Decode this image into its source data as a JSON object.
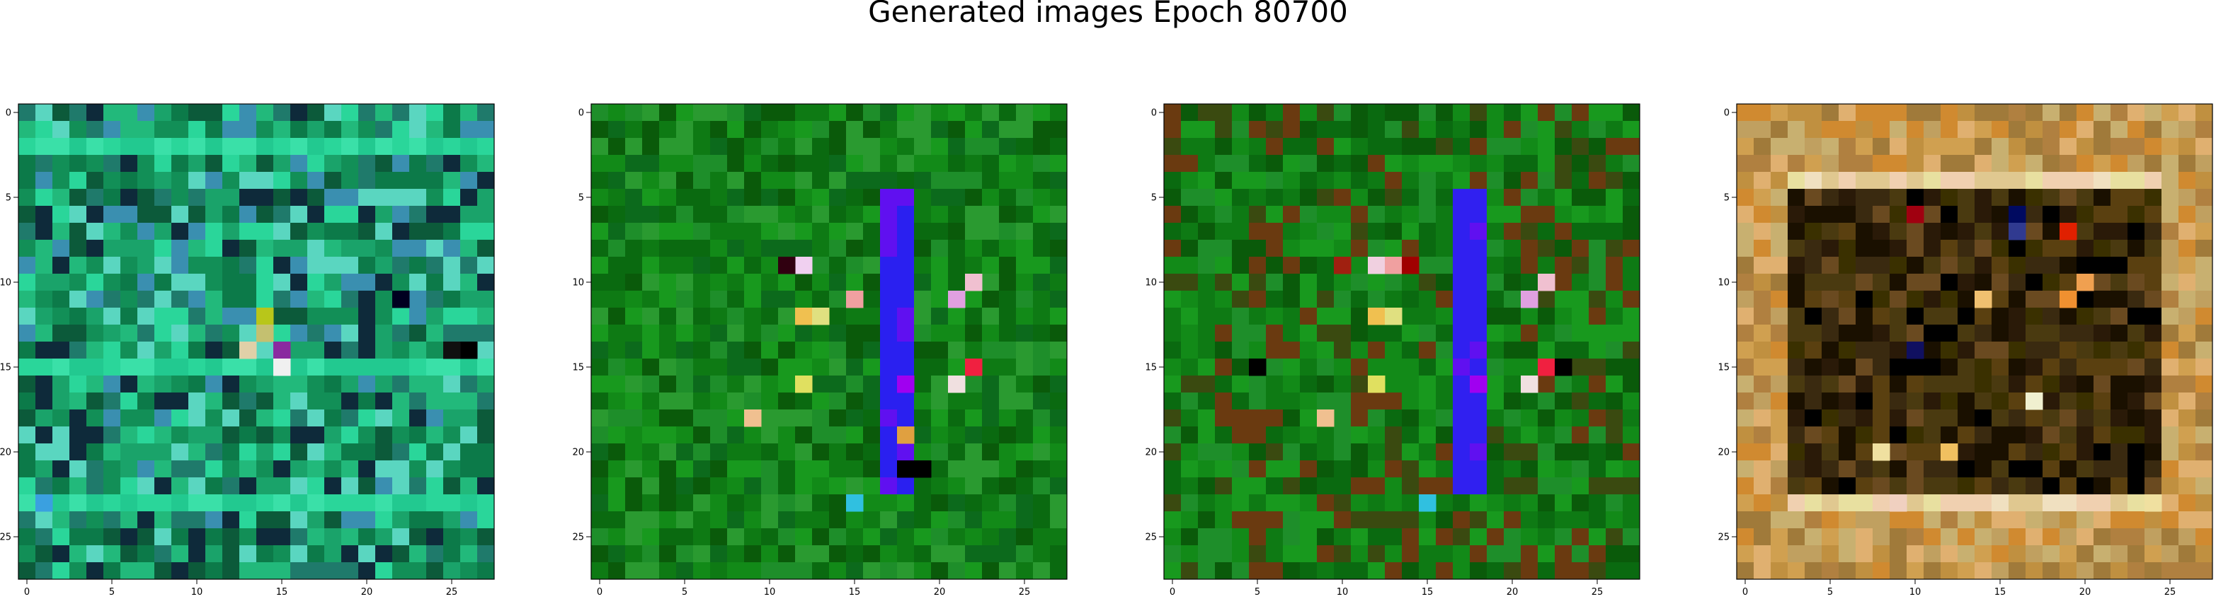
{
  "title": "Generated images Epoch 80700",
  "chart_data": [
    {
      "type": "heatmap",
      "title": "",
      "xlabel": "",
      "ylabel": "",
      "xlim": [
        -0.5,
        27.5
      ],
      "ylim": [
        27.5,
        -0.5
      ],
      "xticks": [
        0,
        5,
        10,
        15,
        20,
        25
      ],
      "yticks": [
        0,
        5,
        10,
        15,
        20,
        25
      ],
      "grid": false,
      "palette": [
        "#0c7a49",
        "#128f57",
        "#1aa36a",
        "#22b97b",
        "#2ad69a",
        "#0c5a3a",
        "#1f7a6b",
        "#3a8fb0",
        "#0e2a3a",
        "#5ad6c0"
      ],
      "bright_rows": [
        2,
        15,
        23
      ],
      "highlights": [
        {
          "x": 14,
          "y": 12,
          "color": "#b8c61a"
        },
        {
          "x": 14,
          "y": 13,
          "color": "#c4c070"
        },
        {
          "x": 15,
          "y": 14,
          "color": "#8a2aa0"
        },
        {
          "x": 15,
          "y": 15,
          "color": "#f0f0f0"
        },
        {
          "x": 13,
          "y": 14,
          "color": "#e0d0a8"
        },
        {
          "x": 26,
          "y": 14,
          "color": "#000000"
        },
        {
          "x": 25,
          "y": 14,
          "color": "#101010"
        },
        {
          "x": 1,
          "y": 23,
          "color": "#3aa0e0"
        },
        {
          "x": 22,
          "y": 11,
          "color": "#000020"
        }
      ]
    },
    {
      "type": "heatmap",
      "title": "",
      "xlabel": "",
      "ylabel": "",
      "xlim": [
        -0.5,
        27.5
      ],
      "ylim": [
        27.5,
        -0.5
      ],
      "xticks": [
        0,
        5,
        10,
        15,
        20,
        25
      ],
      "yticks": [
        0,
        5,
        10,
        15,
        20,
        25
      ],
      "grid": false,
      "palette": [
        "#0a6a10",
        "#0e7a14",
        "#128a18",
        "#18991e",
        "#0a5a0a",
        "#1e8e2a",
        "#2a9a30",
        "#0c6a1c"
      ],
      "bar": {
        "x0": 17,
        "x1": 18,
        "y0": 5,
        "y1": 22,
        "color": "#2a20f0"
      },
      "highlights": [
        {
          "x": 12,
          "y": 9,
          "color": "#f0d0f0"
        },
        {
          "x": 12,
          "y": 12,
          "color": "#f0c050"
        },
        {
          "x": 13,
          "y": 12,
          "color": "#e0e080"
        },
        {
          "x": 15,
          "y": 11,
          "color": "#f0a0a0"
        },
        {
          "x": 21,
          "y": 11,
          "color": "#e0a0e0"
        },
        {
          "x": 22,
          "y": 10,
          "color": "#f0c0d0"
        },
        {
          "x": 21,
          "y": 16,
          "color": "#f0e0e0"
        },
        {
          "x": 22,
          "y": 15,
          "color": "#f02040"
        },
        {
          "x": 9,
          "y": 18,
          "color": "#f0c090"
        },
        {
          "x": 12,
          "y": 16,
          "color": "#e0e060"
        },
        {
          "x": 15,
          "y": 23,
          "color": "#30c0e0"
        },
        {
          "x": 18,
          "y": 21,
          "color": "#000000"
        },
        {
          "x": 19,
          "y": 21,
          "color": "#000000"
        },
        {
          "x": 11,
          "y": 9,
          "color": "#300010"
        },
        {
          "x": 18,
          "y": 16,
          "color": "#a000f0"
        },
        {
          "x": 18,
          "y": 19,
          "color": "#e0a040"
        }
      ]
    },
    {
      "type": "heatmap",
      "title": "",
      "xlabel": "",
      "ylabel": "",
      "xlim": [
        -0.5,
        27.5
      ],
      "ylim": [
        27.5,
        -0.5
      ],
      "xticks": [
        0,
        5,
        10,
        15,
        20,
        25
      ],
      "yticks": [
        0,
        5,
        10,
        15,
        20,
        25
      ],
      "grid": false,
      "palette": [
        "#0a6a10",
        "#0e7a14",
        "#128a18",
        "#18991e",
        "#0a5a0a",
        "#1e8e2a",
        "#6a3a10",
        "#3a4a10"
      ],
      "bar": {
        "x0": 17,
        "x1": 18,
        "y0": 5,
        "y1": 22,
        "color": "#3020f0"
      },
      "highlights": [
        {
          "x": 12,
          "y": 9,
          "color": "#f0d0e0"
        },
        {
          "x": 13,
          "y": 9,
          "color": "#f0a0a0"
        },
        {
          "x": 12,
          "y": 12,
          "color": "#f0c050"
        },
        {
          "x": 13,
          "y": 12,
          "color": "#e0e080"
        },
        {
          "x": 21,
          "y": 11,
          "color": "#e0a0e0"
        },
        {
          "x": 22,
          "y": 10,
          "color": "#f0c0d0"
        },
        {
          "x": 21,
          "y": 16,
          "color": "#f0e0e0"
        },
        {
          "x": 22,
          "y": 15,
          "color": "#f02040"
        },
        {
          "x": 9,
          "y": 18,
          "color": "#f0c090"
        },
        {
          "x": 12,
          "y": 16,
          "color": "#e0e060"
        },
        {
          "x": 15,
          "y": 23,
          "color": "#30c0e0"
        },
        {
          "x": 10,
          "y": 9,
          "color": "#a02010"
        },
        {
          "x": 14,
          "y": 9,
          "color": "#a00000"
        },
        {
          "x": 18,
          "y": 16,
          "color": "#a000f0"
        },
        {
          "x": 5,
          "y": 15,
          "color": "#000000"
        },
        {
          "x": 23,
          "y": 15,
          "color": "#000000"
        }
      ]
    },
    {
      "type": "heatmap",
      "title": "",
      "xlabel": "",
      "ylabel": "",
      "xlim": [
        -0.5,
        27.5
      ],
      "ylim": [
        27.5,
        -0.5
      ],
      "xticks": [
        0,
        5,
        10,
        15,
        20,
        25
      ],
      "yticks": [
        0,
        5,
        10,
        15,
        20,
        25
      ],
      "grid": false,
      "frame_palette": [
        "#c09040",
        "#d0a050",
        "#b08040",
        "#c8b070",
        "#e0b070",
        "#a07a3a",
        "#d08a30",
        "#c0a060"
      ],
      "inner_palette": [
        "#2a1a08",
        "#3a2a10",
        "#4a3a10",
        "#1a1000",
        "#5a4010",
        "#3a3000",
        "#000000",
        "#6a4a20"
      ],
      "light_rows": [
        4,
        23
      ],
      "highlights": [
        {
          "x": 10,
          "y": 6,
          "color": "#a00010"
        },
        {
          "x": 16,
          "y": 6,
          "color": "#000a60"
        },
        {
          "x": 19,
          "y": 7,
          "color": "#e02000"
        },
        {
          "x": 20,
          "y": 10,
          "color": "#f0a050"
        },
        {
          "x": 19,
          "y": 11,
          "color": "#f09030"
        },
        {
          "x": 14,
          "y": 11,
          "color": "#f0c070"
        },
        {
          "x": 10,
          "y": 14,
          "color": "#101060"
        },
        {
          "x": 17,
          "y": 17,
          "color": "#f0f0d0"
        },
        {
          "x": 16,
          "y": 7,
          "color": "#303a90"
        },
        {
          "x": 8,
          "y": 20,
          "color": "#f0e0a0"
        },
        {
          "x": 12,
          "y": 20,
          "color": "#f0c060"
        },
        {
          "x": 24,
          "y": 23,
          "color": "#f0e0a0"
        },
        {
          "x": 9,
          "y": 23,
          "color": "#f0d0c0"
        }
      ]
    }
  ]
}
